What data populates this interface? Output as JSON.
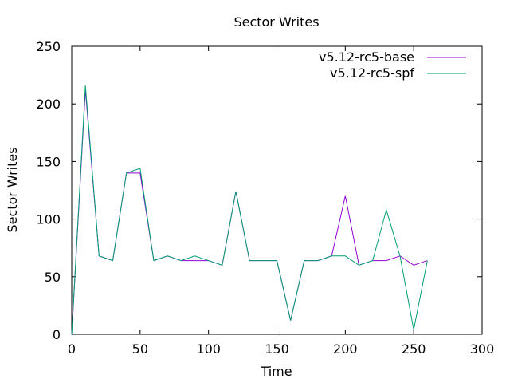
{
  "chart_data": {
    "type": "line",
    "title": "Sector Writes",
    "xlabel": "Time",
    "ylabel": "Sector Writes",
    "xlim": [
      0,
      300
    ],
    "ylim": [
      0,
      250
    ],
    "xticks": [
      0,
      50,
      100,
      150,
      200,
      250,
      300
    ],
    "yticks": [
      0,
      50,
      100,
      150,
      200,
      250
    ],
    "grid": false,
    "legend": "top-right",
    "series": [
      {
        "name": "v5.12-rc5-base",
        "color": "#9400d3",
        "x": [
          0,
          10,
          20,
          30,
          40,
          50,
          60,
          70,
          80,
          90,
          100,
          110,
          120,
          130,
          140,
          150,
          160,
          170,
          180,
          190,
          200,
          210,
          220,
          230,
          240,
          250,
          260
        ],
        "y": [
          0,
          212,
          68,
          64,
          140,
          140,
          64,
          68,
          64,
          64,
          64,
          60,
          124,
          64,
          64,
          64,
          12,
          64,
          64,
          68,
          120,
          60,
          64,
          64,
          68,
          60,
          64
        ]
      },
      {
        "name": "v5.12-rc5-spf",
        "color": "#009e73",
        "x": [
          0,
          10,
          20,
          30,
          40,
          50,
          60,
          70,
          80,
          90,
          100,
          110,
          120,
          130,
          140,
          150,
          160,
          170,
          180,
          190,
          200,
          210,
          220,
          230,
          240,
          250,
          260
        ],
        "y": [
          0,
          216,
          68,
          64,
          140,
          144,
          64,
          68,
          64,
          68,
          64,
          60,
          124,
          64,
          64,
          64,
          12,
          64,
          64,
          68,
          68,
          60,
          64,
          108,
          68,
          4,
          64
        ]
      }
    ]
  }
}
